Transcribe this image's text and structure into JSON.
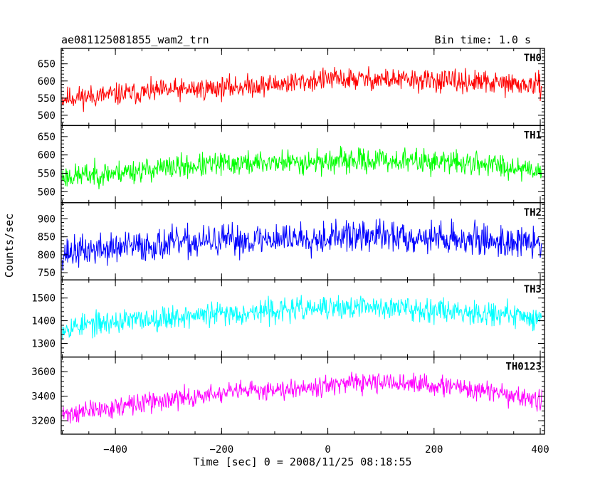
{
  "header": {
    "title": "ae081125081855_wam2_trn",
    "bin_time": "Bin time: 1.0 s"
  },
  "chart_data": {
    "type": "line",
    "title": "ae081125081855_wam2_trn",
    "xlabel": "Time [sec] 0 = 2008/11/25 08:18:55",
    "ylabel": "Counts/sec",
    "xlim": [
      -502,
      408
    ],
    "x_ticks": [
      -400,
      -200,
      0,
      200,
      400
    ],
    "x_tick_labels": [
      "−400",
      "−200",
      "0",
      "200",
      "400"
    ],
    "panels": [
      {
        "name": "TH0",
        "color": "#ff0000",
        "ylim": [
          470,
          695
        ],
        "y_ticks": [
          500,
          550,
          600,
          650
        ],
        "y_tick_labels": [
          "500",
          "550",
          "600",
          "650"
        ],
        "x": [
          -500,
          -400,
          -300,
          -200,
          -100,
          0,
          100,
          200,
          300,
          400
        ],
        "y": [
          550,
          560,
          572,
          580,
          590,
          605,
          605,
          600,
          595,
          585
        ],
        "noise": 28,
        "seed": 11
      },
      {
        "name": "TH1",
        "color": "#00ff00",
        "ylim": [
          470,
          680
        ],
        "y_ticks": [
          500,
          550,
          600,
          650
        ],
        "y_tick_labels": [
          "500",
          "550",
          "600",
          "650"
        ],
        "x": [
          -500,
          -400,
          -300,
          -200,
          -100,
          0,
          100,
          200,
          300,
          400
        ],
        "y": [
          540,
          552,
          565,
          575,
          580,
          582,
          585,
          582,
          575,
          560
        ],
        "noise": 28,
        "seed": 23
      },
      {
        "name": "TH2",
        "color": "#0000ff",
        "ylim": [
          730,
          945
        ],
        "y_ticks": [
          750,
          800,
          850,
          900
        ],
        "y_tick_labels": [
          "750",
          "800",
          "850",
          "900"
        ],
        "x": [
          -500,
          -400,
          -300,
          -200,
          -100,
          0,
          100,
          200,
          300,
          400
        ],
        "y": [
          805,
          818,
          830,
          838,
          845,
          850,
          852,
          848,
          840,
          830
        ],
        "noise": 38,
        "seed": 37
      },
      {
        "name": "TH3",
        "color": "#00ffff",
        "ylim": [
          1240,
          1580
        ],
        "y_ticks": [
          1300,
          1400,
          1500
        ],
        "y_tick_labels": [
          "1300",
          "1400",
          "1500"
        ],
        "x": [
          -500,
          -400,
          -300,
          -200,
          -100,
          0,
          100,
          200,
          300,
          400
        ],
        "y": [
          1370,
          1395,
          1415,
          1430,
          1445,
          1455,
          1460,
          1450,
          1435,
          1410
        ],
        "noise": 45,
        "seed": 53
      },
      {
        "name": "TH0123",
        "color": "#ff00ff",
        "ylim": [
          3090,
          3720
        ],
        "y_ticks": [
          3200,
          3400,
          3600
        ],
        "y_tick_labels": [
          "3200",
          "3400",
          "3600"
        ],
        "x": [
          -500,
          -400,
          -300,
          -200,
          -100,
          0,
          100,
          200,
          300,
          400
        ],
        "y": [
          3250,
          3310,
          3370,
          3420,
          3460,
          3490,
          3510,
          3490,
          3440,
          3360
        ],
        "noise": 70,
        "seed": 71
      }
    ]
  }
}
